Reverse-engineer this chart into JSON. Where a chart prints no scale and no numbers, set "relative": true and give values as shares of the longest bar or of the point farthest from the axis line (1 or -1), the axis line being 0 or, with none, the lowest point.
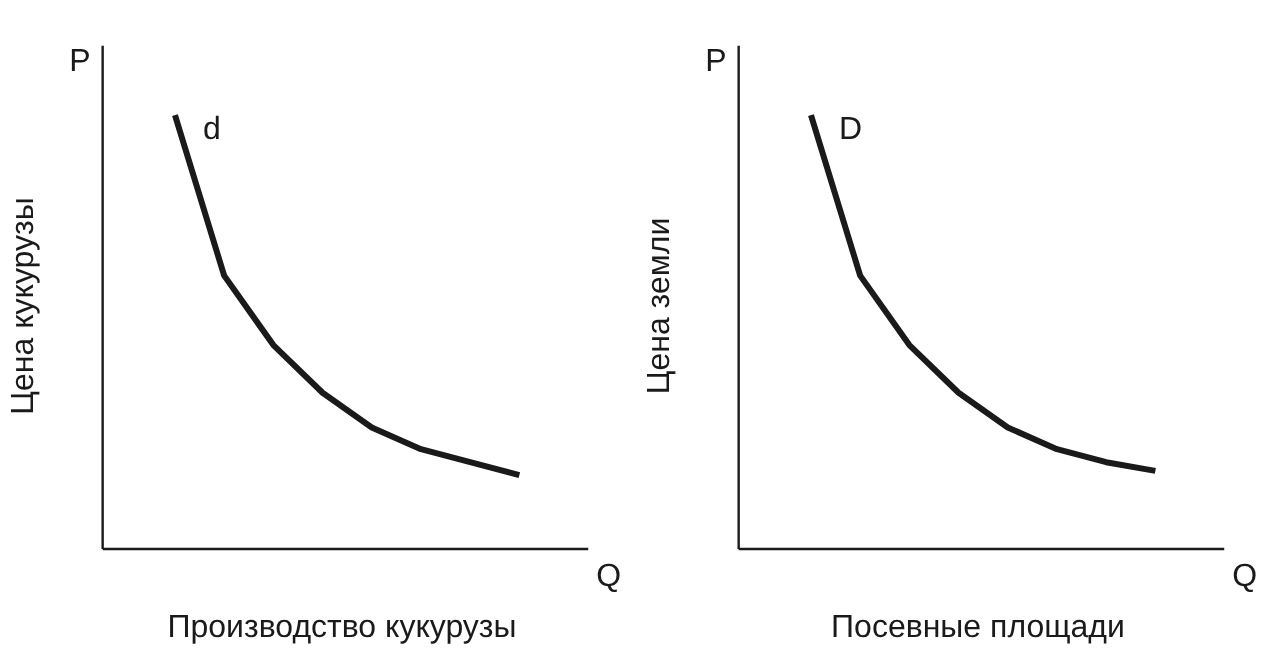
{
  "chart_data": [
    {
      "type": "line",
      "relative": true,
      "xlabel": "Производство кукурузы",
      "ylabel": "Цена кукурузы",
      "annotations": [
        "P",
        "Q"
      ],
      "categories": [
        null,
        null,
        null,
        null,
        null,
        null,
        null,
        null
      ],
      "legend": false,
      "marker": "none",
      "line_style": "solid",
      "series": [
        {
          "name": "d",
          "color": "#1a1a1a",
          "values": [
            1,
            0.63,
            0.47,
            0.36,
            0.28,
            0.23,
            0.2,
            0.17
          ]
        }
      ]
    },
    {
      "type": "line",
      "relative": true,
      "xlabel": "Посевные площади",
      "ylabel": "Цена земли",
      "annotations": [
        "P",
        "Q"
      ],
      "categories": [
        null,
        null,
        null,
        null,
        null,
        null,
        null,
        null
      ],
      "legend": false,
      "marker": "none",
      "line_style": "solid",
      "series": [
        {
          "name": "D",
          "color": "#1a1a1a",
          "values": [
            1,
            0.63,
            0.47,
            0.36,
            0.28,
            0.23,
            0.2,
            0.18
          ]
        }
      ]
    }
  ]
}
